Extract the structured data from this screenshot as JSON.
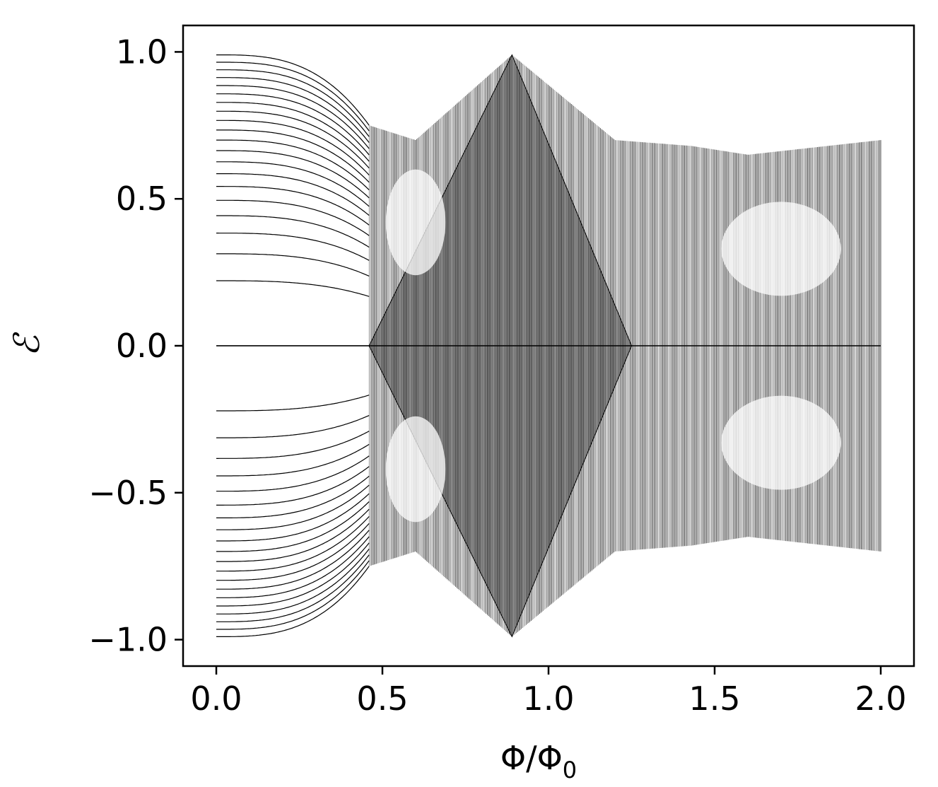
{
  "chart_data": {
    "type": "scatter",
    "title": "",
    "xlabel": "Φ/Φ",
    "xlabel_subscript": "0",
    "ylabel": "ℰ",
    "xlim": [
      -0.1,
      2.1
    ],
    "ylim": [
      -1.09,
      1.09
    ],
    "x_ticks": [
      0.0,
      0.5,
      1.0,
      1.5,
      2.0
    ],
    "x_tick_labels": [
      "0.0",
      "0.5",
      "1.0",
      "1.5",
      "2.0"
    ],
    "y_ticks": [
      1.0,
      0.5,
      0.0,
      -0.5,
      -1.0
    ],
    "y_tick_labels": [
      "1.0",
      "0.5",
      "0.0",
      "−0.5",
      "−1.0"
    ],
    "grid": false,
    "legend": "none",
    "marker_color": "#000000",
    "description_of_series": "Hofstadter-like spectrum: energy levels as points vs flux",
    "series": [
      {
        "x_range": [
          0.0,
          2.0
        ],
        "level_count": 41,
        "key_points": [
          {
            "x": 0.0,
            "y_max": 0.99,
            "y_min": -0.99
          },
          {
            "x": 0.46,
            "y_max": 0.75,
            "y_min": -0.75
          },
          {
            "x": 0.6,
            "y_max": 0.7,
            "y_min": -0.7
          },
          {
            "x": 0.89,
            "y_max": 0.99,
            "y_min": -0.99
          },
          {
            "x": 1.2,
            "y_max": 0.7,
            "y_min": -0.7
          },
          {
            "x": 1.43,
            "y_max": 0.68,
            "y_min": -0.68
          },
          {
            "x": 1.6,
            "y_max": 0.65,
            "y_min": -0.65
          },
          {
            "x": 2.0,
            "y_max": 0.7,
            "y_min": -0.7
          }
        ]
      }
    ]
  }
}
